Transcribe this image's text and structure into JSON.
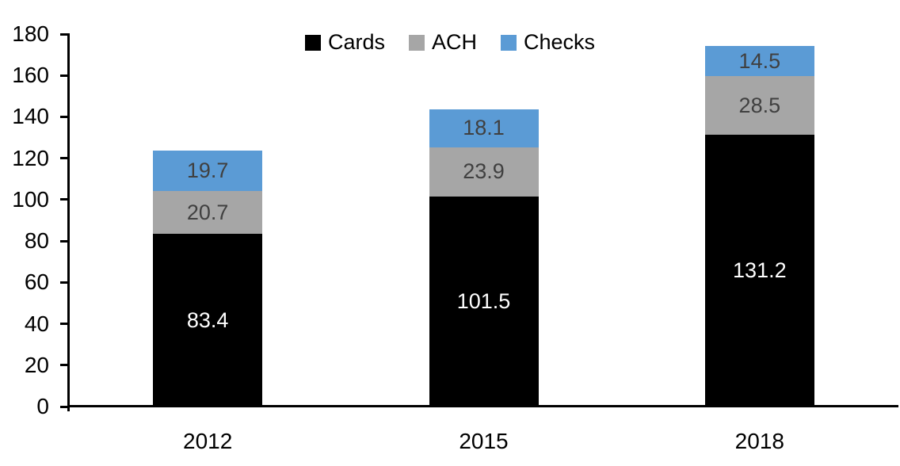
{
  "chart_data": {
    "type": "bar",
    "stacked": true,
    "title": "",
    "xlabel": "",
    "ylabel": "",
    "categories": [
      "2012",
      "2015",
      "2018"
    ],
    "series": [
      {
        "name": "Cards",
        "color": "#000000",
        "label_color": "#FFFFFF",
        "values": [
          83.4,
          101.5,
          131.2
        ]
      },
      {
        "name": "ACH",
        "color": "#A6A6A6",
        "label_color": "#404040",
        "values": [
          20.7,
          23.9,
          28.5
        ]
      },
      {
        "name": "Checks",
        "color": "#5B9BD5",
        "label_color": "#404040",
        "values": [
          19.7,
          18.1,
          14.5
        ]
      }
    ],
    "totals": [
      123.8,
      143.5,
      174.2
    ],
    "ylim": [
      0,
      180
    ],
    "ytick_step": 20,
    "ytick_labels": [
      "0",
      "20",
      "40",
      "60",
      "80",
      "100",
      "120",
      "140",
      "160",
      "180"
    ],
    "legend_position": "top-center",
    "legend_order": [
      "Cards",
      "ACH",
      "Checks"
    ],
    "grid": false,
    "axis_color": "#000000",
    "background_color": "#FFFFFF"
  }
}
